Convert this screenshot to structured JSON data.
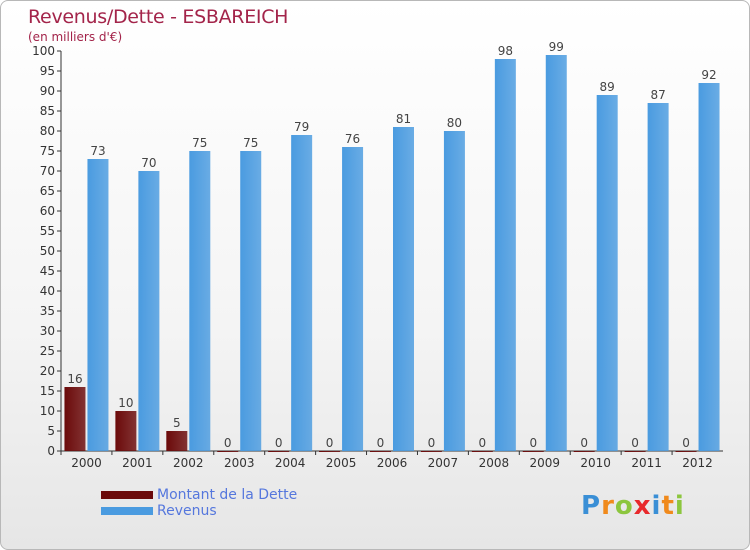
{
  "title": "Revenus/Dette - ESBAREICH",
  "subtitle": "(en milliers d'€)",
  "legend": {
    "items": [
      {
        "label": "Montant de la Dette",
        "color": "#6b0a0a"
      },
      {
        "label": "Revenus",
        "color": "#4a9be0"
      }
    ]
  },
  "logo": {
    "text": "Proxiti",
    "letters": [
      {
        "ch": "P",
        "color": "#3a8fd6"
      },
      {
        "ch": "r",
        "color": "#f08a1c"
      },
      {
        "ch": "o",
        "color": "#8cc63e"
      },
      {
        "ch": "x",
        "color": "#e8292c"
      },
      {
        "ch": "i",
        "color": "#3a8fd6"
      },
      {
        "ch": "t",
        "color": "#f08a1c"
      },
      {
        "ch": "i",
        "color": "#8cc63e"
      }
    ]
  },
  "chart_data": {
    "type": "bar",
    "categories": [
      "2000",
      "2001",
      "2002",
      "2003",
      "2004",
      "2005",
      "2006",
      "2007",
      "2008",
      "2009",
      "2010",
      "2011",
      "2012"
    ],
    "series": [
      {
        "name": "Montant de la Dette",
        "color": "#6b0a0a",
        "values": [
          16,
          10,
          5,
          0,
          0,
          0,
          0,
          0,
          0,
          0,
          0,
          0,
          0
        ]
      },
      {
        "name": "Revenus",
        "color": "#4a9be0",
        "values": [
          73,
          70,
          75,
          75,
          79,
          76,
          81,
          80,
          98,
          99,
          89,
          87,
          92
        ]
      }
    ],
    "ylim": [
      0,
      100
    ],
    "ytick_step": 5,
    "grid": false,
    "legend": "bottom-left"
  }
}
